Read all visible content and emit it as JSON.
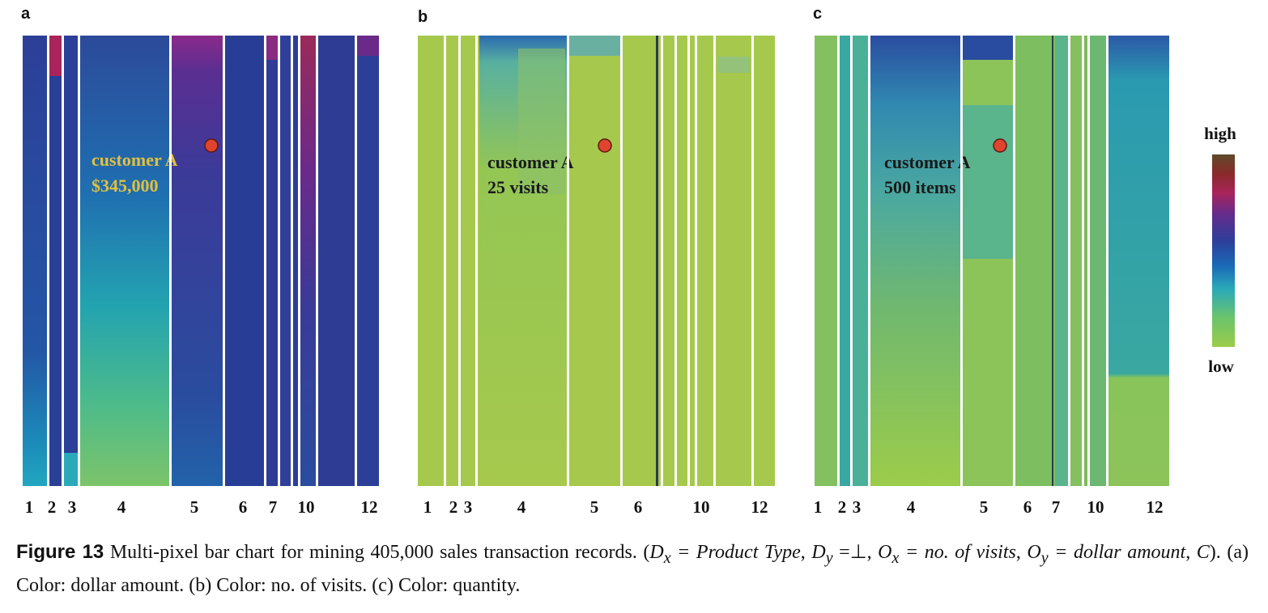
{
  "chart_data": [
    {
      "type": "heatmap",
      "panel": "a",
      "tick_labels": [
        "1",
        "2",
        "3",
        "4",
        "5",
        "6",
        "7",
        "10",
        "12"
      ],
      "annotation": {
        "name": "customer A",
        "value": "$345,000"
      },
      "annotation_color": "#e0c040",
      "dominant_color": "#2c4a9a"
    },
    {
      "type": "heatmap",
      "panel": "b",
      "tick_labels": [
        "1",
        "2",
        "3",
        "4",
        "5",
        "6",
        "10",
        "12"
      ],
      "annotation": {
        "name": "customer A",
        "value": "25 visits"
      },
      "annotation_color": "#1a1a1a",
      "dominant_color": "#a6c94d"
    },
    {
      "type": "heatmap",
      "panel": "c",
      "tick_labels": [
        "1",
        "2",
        "3",
        "4",
        "5",
        "6",
        "7",
        "10",
        "12"
      ],
      "annotation": {
        "name": "customer A",
        "value": "500 items"
      },
      "annotation_color": "#1a1a1a",
      "dominant_color": "#7dbb5a"
    }
  ],
  "legend": {
    "high_label": "high",
    "low_label": "low",
    "colors": [
      "#5e4a2a",
      "#8a2a2a",
      "#a8245a",
      "#6a2a8a",
      "#2c3f9a",
      "#1a6ab8",
      "#2aaab8",
      "#6cc46a",
      "#9ccc4a"
    ]
  },
  "marker_color": "#e0442c",
  "caption": {
    "figure_label": "Figure 13",
    "text_1": "Multi-pixel bar chart for mining 405,000 sales transaction records. (",
    "dx": "D",
    "dx_sub": "x",
    "dx_value": " = Product Type",
    "dy": "D",
    "dy_sub": "y",
    "dy_value": " =⊥",
    "ox": "O",
    "ox_sub": "x",
    "ox_value": " = no. of visits",
    "oy": "O",
    "oy_sub": "y",
    "oy_value": " = dollar amount",
    "c_var": "C",
    "text_2": "). (a) Color: dollar amount. (b) Color: no. of visits. (c) Color: quantity."
  }
}
